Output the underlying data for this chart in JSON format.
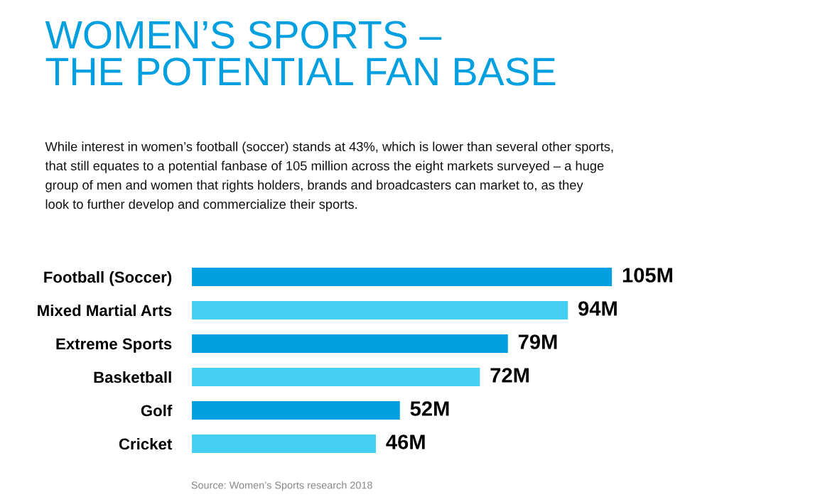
{
  "chart_data": {
    "type": "bar",
    "orientation": "horizontal",
    "title": "WOMEN’S SPORTS –\nTHE POTENTIAL FAN BASE",
    "subtitle": "While interest in women’s football (soccer) stands at 43%, which is lower than several other sports,\nthat still equates to a potential fanbase of 105 million across the eight markets surveyed – a huge\ngroup of men and women that rights holders, brands and broadcasters can market to, as they\nlook to further develop and commercialize their sports.",
    "categories": [
      "Football (Soccer)",
      "Mixed Martial Arts",
      "Extreme Sports",
      "Basketball",
      "Golf",
      "Cricket"
    ],
    "values": [
      105,
      94,
      79,
      72,
      52,
      46
    ],
    "value_labels": [
      "105M",
      "94M",
      "79M",
      "72M",
      "52M",
      "46M"
    ],
    "colors": [
      "#00a0e0",
      "#45cff2",
      "#00a0e0",
      "#45cff2",
      "#00a0e0",
      "#45cff2"
    ],
    "annotations": [
      "Source: Women’s Sports research 2018"
    ],
    "grid": false,
    "legend": false
  }
}
